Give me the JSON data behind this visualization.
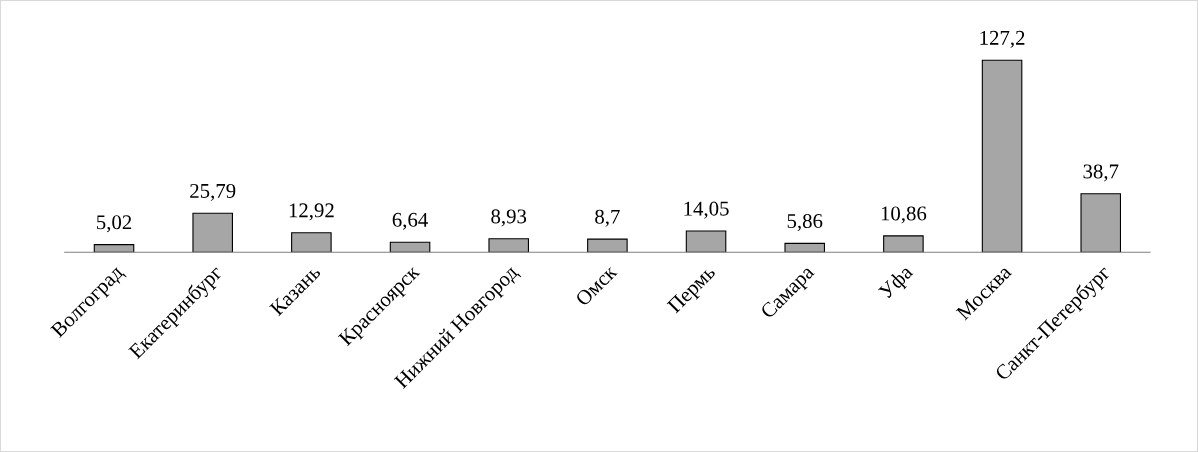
{
  "chart_data": {
    "type": "bar",
    "categories": [
      "Волгоград",
      "Екатеринбург",
      "Казань",
      "Красноярск",
      "Нижний Новгород",
      "Омск",
      "Пермь",
      "Самара",
      "Уфа",
      "Москва",
      "Санкт-Петербург"
    ],
    "values": [
      5.02,
      25.79,
      12.92,
      6.64,
      8.93,
      8.7,
      14.05,
      5.86,
      10.86,
      127.2,
      38.7
    ],
    "value_labels": [
      "5,02",
      "25,79",
      "12,92",
      "6,64",
      "8,93",
      "8,7",
      "14,05",
      "5,86",
      "10,86",
      "127,2",
      "38,7"
    ],
    "color": "#a6a6a6",
    "grid": false,
    "legend": false
  }
}
